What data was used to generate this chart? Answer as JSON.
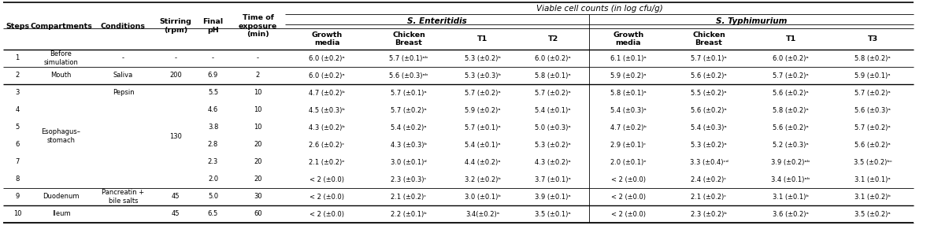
{
  "viable_cell_header": "Viable cell counts (in log cfu/g)",
  "s_enteritidis_header": "S. Enteritidis",
  "s_typhimurium_header": "S. Typhimurium",
  "main_headers": [
    "Steps",
    "Compartments",
    "Conditions",
    "Stirring\n(rpm)",
    "Final\npH",
    "Time of\nexposure\n(min)"
  ],
  "subheaders_se": [
    "Growth\nmedia",
    "Chicken\nBreast",
    "T1",
    "T2"
  ],
  "subheaders_st": [
    "Growth\nmedia",
    "Chicken\nBreast",
    "T1",
    "T3"
  ],
  "rows": [
    {
      "step": "1",
      "compartment": "Before\nsimulation",
      "condition": "-",
      "stirring": "-",
      "pH": "-",
      "time": "-",
      "se_gm": "6.0 (±0.2)ᵃ",
      "se_cb": "5.7 (±0.1)ᵃᵇ",
      "se_t1": "5.3 (±0.2)ᵇ",
      "se_t2": "6.0 (±0.2)ᵃ",
      "st_gm": "6.1 (±0.1)ᵃ",
      "st_cb": "5.7 (±0.1)ᵃ",
      "st_t1": "6.0 (±0.2)ᵃ",
      "st_t3": "5.8 (±0.2)ᵃ"
    },
    {
      "step": "2",
      "compartment": "Mouth",
      "condition": "Saliva",
      "stirring": "200",
      "pH": "6.9",
      "time": "2",
      "se_gm": "6.0 (±0.2)ᵃ",
      "se_cb": "5.6 (±0.3)ᵃᵇ",
      "se_t1": "5.3 (±0.3)ᵇ",
      "se_t2": "5.8 (±0.1)ᵃ",
      "st_gm": "5.9 (±0.2)ᵃ",
      "st_cb": "5.6 (±0.2)ᵃ",
      "st_t1": "5.7 (±0.2)ᵃ",
      "st_t3": "5.9 (±0.1)ᵃ"
    },
    {
      "step": "3",
      "compartment": "",
      "condition": "Pepsin",
      "stirring": "",
      "pH": "5.5",
      "time": "10",
      "se_gm": "4.7 (±0.2)ᵇ",
      "se_cb": "5.7 (±0.1)ᵃ",
      "se_t1": "5.7 (±0.2)ᵃ",
      "se_t2": "5.7 (±0.2)ᵃ",
      "st_gm": "5.8 (±0.1)ᵃ",
      "st_cb": "5.5 (±0.2)ᵃ",
      "st_t1": "5.6 (±0.2)ᵃ",
      "st_t3": "5.7 (±0.2)ᵃ"
    },
    {
      "step": "4",
      "compartment": "",
      "condition": "",
      "stirring": "",
      "pH": "4.6",
      "time": "10",
      "se_gm": "4.5 (±0.3)ᵇ",
      "se_cb": "5.7 (±0.2)ᵃ",
      "se_t1": "5.9 (±0.2)ᵃ",
      "se_t2": "5.4 (±0.1)ᵃ",
      "st_gm": "5.4 (±0.3)ᵃ",
      "st_cb": "5.6 (±0.2)ᵃ",
      "st_t1": "5.8 (±0.2)ᵃ",
      "st_t3": "5.6 (±0.3)ᵃ"
    },
    {
      "step": "5",
      "compartment": "",
      "condition": "",
      "stirring": "",
      "pH": "3.8",
      "time": "10",
      "se_gm": "4.3 (±0.2)ᵇ",
      "se_cb": "5.4 (±0.2)ᵃ",
      "se_t1": "5.7 (±0.1)ᵃ",
      "se_t2": "5.0 (±0.3)ᵃ",
      "st_gm": "4.7 (±0.2)ᵇ",
      "st_cb": "5.4 (±0.3)ᵃ",
      "st_t1": "5.6 (±0.2)ᵃ",
      "st_t3": "5.7 (±0.2)ᵃ"
    },
    {
      "step": "6",
      "compartment": "",
      "condition": "",
      "stirring": "",
      "pH": "2.8",
      "time": "20",
      "se_gm": "2.6 (±0.2)ᶜ",
      "se_cb": "4.3 (±0.3)ᵇ",
      "se_t1": "5.4 (±0.1)ᵃ",
      "se_t2": "5.3 (±0.2)ᵃ",
      "st_gm": "2.9 (±0.1)ᶜ",
      "st_cb": "5.3 (±0.2)ᵃ",
      "st_t1": "5.2 (±0.3)ᵃ",
      "st_t3": "5.6 (±0.2)ᵃ"
    },
    {
      "step": "7",
      "compartment": "",
      "condition": "",
      "stirring": "",
      "pH": "2.3",
      "time": "20",
      "se_gm": "2.1 (±0.2)ᵉ",
      "se_cb": "3.0 (±0.1)ᵈ",
      "se_t1": "4.4 (±0.2)ᵃ",
      "se_t2": "4.3 (±0.2)ᵃ",
      "st_gm": "2.0 (±0.1)ᵉ",
      "st_cb": "3.3 (±0.4)ᶜᵈ",
      "st_t1": "3.9 (±0.2)ᵃᵇ",
      "st_t3": "3.5 (±0.2)ᵇᶜ"
    },
    {
      "step": "8",
      "compartment": "",
      "condition": "",
      "stirring": "",
      "pH": "2.0",
      "time": "20",
      "se_gm": "< 2 (±0.0)",
      "se_cb": "2.3 (±0.3)ᶜ",
      "se_t1": "3.2 (±0.2)ᵇ",
      "se_t2": "3.7 (±0.1)ᵃ",
      "st_gm": "< 2 (±0.0)",
      "st_cb": "2.4 (±0.2)ᶜ",
      "st_t1": "3.4 (±0.1)ᵃᵇ",
      "st_t3": "3.1 (±0.1)ᵃ"
    },
    {
      "step": "9",
      "compartment": "Duodenum",
      "condition": "Pancreatin +\nbile salts",
      "stirring": "45",
      "pH": "5.0",
      "time": "30",
      "se_gm": "< 2 (±0.0)",
      "se_cb": "2.1 (±0.2)ᶜ",
      "se_t1": "3.0 (±0.1)ᵇ",
      "se_t2": "3.9 (±0.1)ᵃ",
      "st_gm": "< 2 (±0.0)",
      "st_cb": "2.1 (±0.2)ᶜ",
      "st_t1": "3.1 (±0.1)ᵇ",
      "st_t3": "3.1 (±0.2)ᵇ"
    },
    {
      "step": "10",
      "compartment": "Ileum",
      "condition": "",
      "stirring": "45",
      "pH": "6.5",
      "time": "60",
      "se_gm": "< 2 (±0.0)",
      "se_cb": "2.2 (±0.1)ᵇ",
      "se_t1": "3.4(±0.2)ᵃ",
      "se_t2": "3.5 (±0.1)ᵃ",
      "st_gm": "< 2 (±0.0)",
      "st_cb": "2.3 (±0.2)ᵇ",
      "st_t1": "3.6 (±0.2)ᵃ",
      "st_t3": "3.5 (±0.2)ᵃ"
    }
  ],
  "esophagus_label": "Esophagus–\nstomach",
  "esophagus_rows": [
    2,
    7
  ],
  "stirring_130_rows": [
    2,
    7
  ],
  "bg_color": "#ffffff",
  "text_color": "#000000"
}
